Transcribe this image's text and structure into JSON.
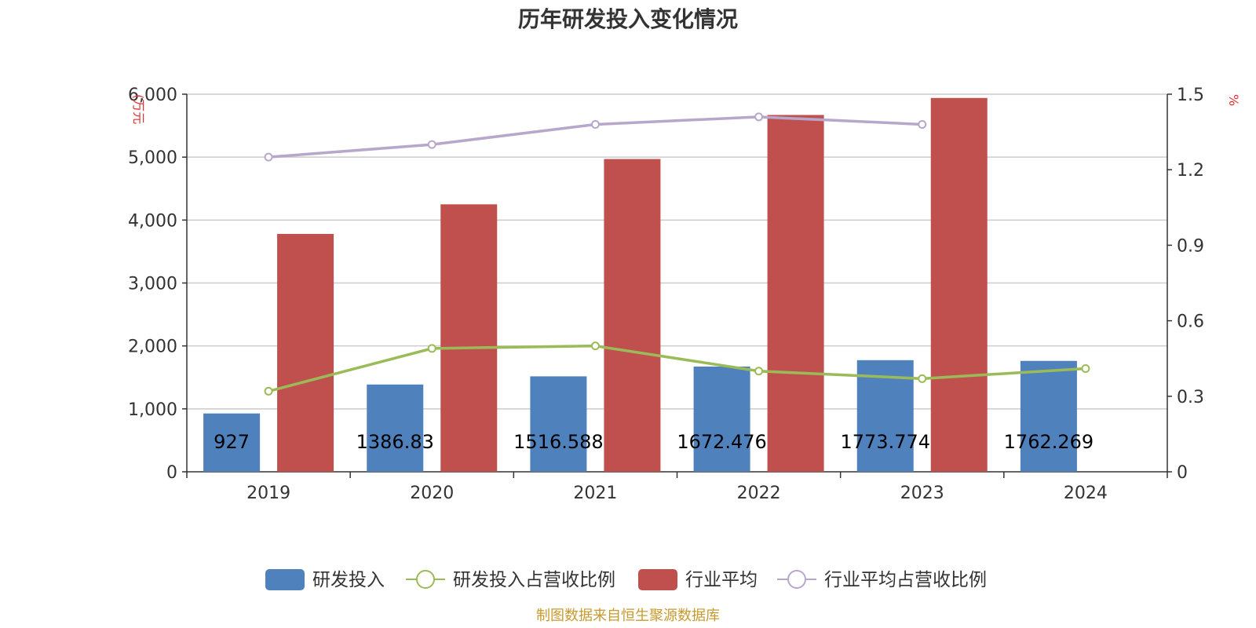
{
  "chart_data": {
    "type": "bar",
    "title": "历年研发投入变化情况",
    "categories": [
      "2019",
      "2020",
      "2021",
      "2022",
      "2023",
      "2024"
    ],
    "y_left": {
      "unit": "(万元",
      "ticks": [
        "0",
        "1,000",
        "2,000",
        "3,000",
        "4,000",
        "5,000",
        "6,000"
      ],
      "range": [
        0,
        6000
      ]
    },
    "y_right": {
      "unit": "%",
      "ticks": [
        "0",
        "0.3",
        "0.6",
        "0.9",
        "1.2",
        "1.5"
      ],
      "range": [
        0,
        1.5
      ]
    },
    "series": [
      {
        "name": "研发投入",
        "kind": "bar",
        "axis": "left",
        "color": "#4f81bd",
        "values": [
          927,
          1386.83,
          1516.588,
          1672.476,
          1773.774,
          1762.269
        ],
        "labels": [
          "927",
          "1386.83",
          "1516.588",
          "1672.476",
          "1773.774",
          "1762.269"
        ]
      },
      {
        "name": "研发投入占营收比例",
        "kind": "line",
        "axis": "right",
        "color": "#9bbb59",
        "values": [
          0.32,
          0.49,
          0.5,
          0.4,
          0.37,
          0.41
        ]
      },
      {
        "name": "行业平均",
        "kind": "bar",
        "axis": "left",
        "color": "#c0504d",
        "values": [
          3780,
          4250,
          4970,
          5670,
          5940,
          null
        ]
      },
      {
        "name": "行业平均占营收比例",
        "kind": "line",
        "axis": "right",
        "color": "#b7a7cc",
        "values": [
          1.25,
          1.3,
          1.38,
          1.41,
          1.38,
          null
        ]
      }
    ],
    "legend_position": "bottom",
    "grid": true
  },
  "source": "制图数据来自恒生聚源数据库"
}
